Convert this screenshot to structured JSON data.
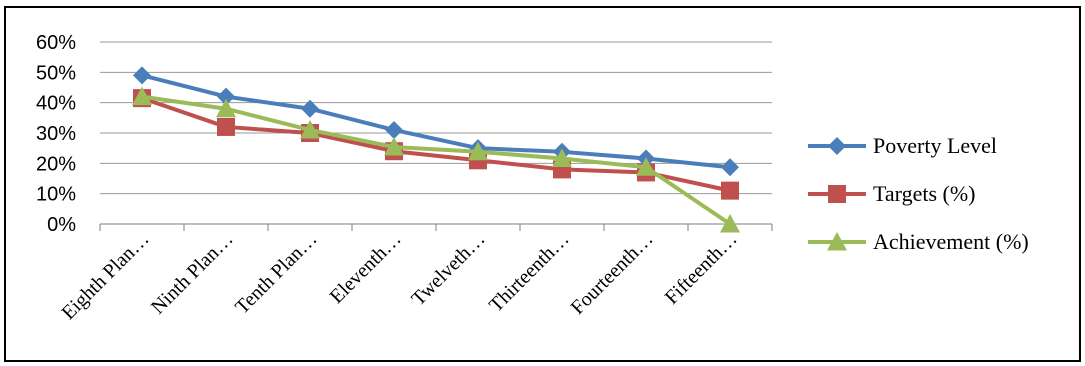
{
  "chart_data": {
    "type": "line",
    "title": "",
    "xlabel": "",
    "ylabel": "",
    "categories": [
      "Eighth Plan…",
      "Ninth Plan…",
      "Tenth Plan…",
      "Eleventh…",
      "Twelveth…",
      "Thirteenth…",
      "Fourteenth…",
      "Fifteenth…"
    ],
    "y_ticks": [
      "0%",
      "10%",
      "20%",
      "30%",
      "40%",
      "50%",
      "60%"
    ],
    "ylim": [
      0,
      60
    ],
    "grid": true,
    "legend_position": "right",
    "series": [
      {
        "name": "Poverty Level",
        "color": "#4A7EBB",
        "marker": "diamond",
        "values": [
          49,
          42,
          38,
          31,
          25,
          23.8,
          21.6,
          18.7
        ]
      },
      {
        "name": "Targets (%)",
        "color": "#C0504D",
        "marker": "square",
        "values": [
          41.5,
          32,
          30,
          24,
          21,
          18,
          17,
          11
        ]
      },
      {
        "name": "Achievement (%)",
        "color": "#9BBB59",
        "marker": "triangle",
        "values": [
          42,
          38,
          31,
          25.4,
          23.8,
          21.6,
          18.7,
          0
        ]
      }
    ]
  }
}
